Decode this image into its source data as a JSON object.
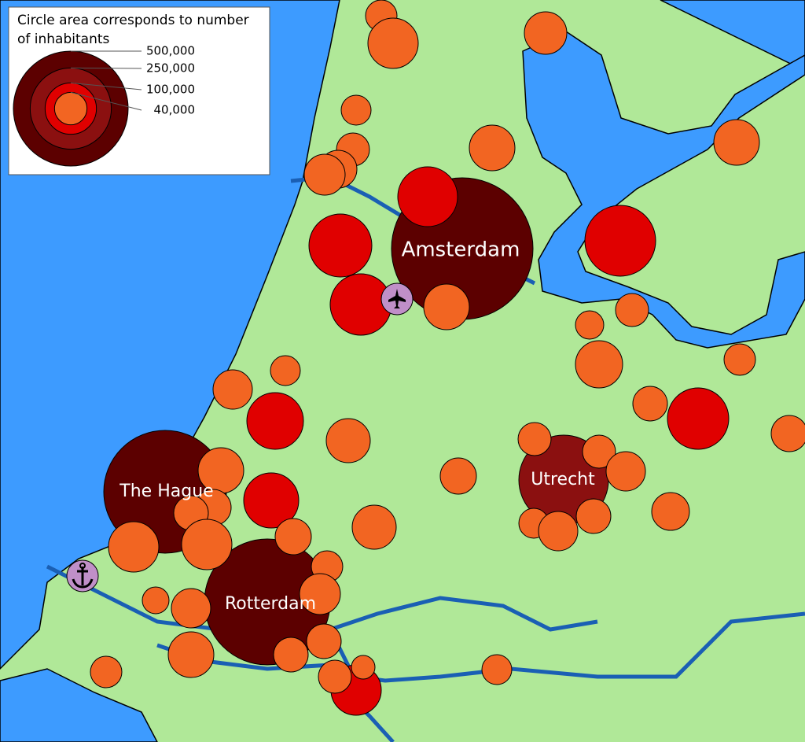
{
  "legend": {
    "title": "Circle area corresponds to number of inhabitants",
    "sizes": [
      {
        "value": 500000,
        "label": "500,000"
      },
      {
        "value": 250000,
        "label": "250,000"
      },
      {
        "value": 100000,
        "label": "100,000"
      },
      {
        "value": 40000,
        "label": "40,000"
      }
    ]
  },
  "cities": [
    "Amsterdam",
    "The Hague",
    "Rotterdam",
    "Utrecht"
  ]
}
